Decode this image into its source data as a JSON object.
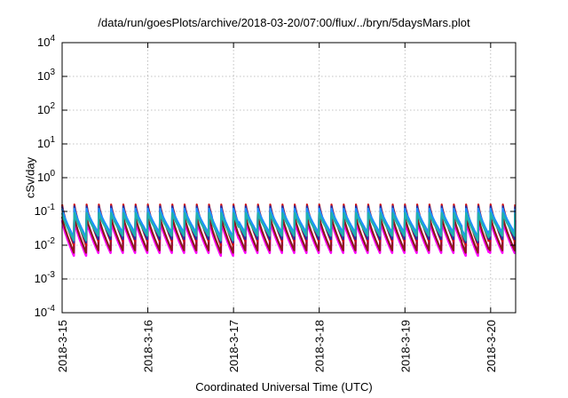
{
  "chart_data": {
    "type": "line",
    "title": "/data/run/goesPlots/archive/2018-03-20/07:00/flux/../bryn/5daysMars.plot",
    "xlabel": "Coordinated Universal Time (UTC)",
    "ylabel": "cSv/day",
    "yscale": "log",
    "ylim": [
      0.0001,
      10000
    ],
    "y_ticks": [
      {
        "value": 0.0001,
        "base": "10",
        "exp": "-4"
      },
      {
        "value": 0.001,
        "base": "10",
        "exp": "-3"
      },
      {
        "value": 0.01,
        "base": "10",
        "exp": "-2"
      },
      {
        "value": 0.1,
        "base": "10",
        "exp": "-1"
      },
      {
        "value": 1,
        "base": "10",
        "exp": "0"
      },
      {
        "value": 10,
        "base": "10",
        "exp": "1"
      },
      {
        "value": 100,
        "base": "10",
        "exp": "2"
      },
      {
        "value": 1000,
        "base": "10",
        "exp": "3"
      },
      {
        "value": 10000,
        "base": "10",
        "exp": "4"
      }
    ],
    "xlim": [
      "2018-03-15T00:00",
      "2018-03-20T07:00"
    ],
    "x_ticks": [
      "2018-3-15",
      "2018-3-16",
      "2018-3-17",
      "2018-3-18",
      "2018-3-19",
      "2018-3-20"
    ],
    "grid": true,
    "pattern": {
      "cycles_per_day": 7,
      "low_dips_start": [
        "2018-03-15T00:00",
        "2018-03-16T18:00",
        "2018-03-19T16:00"
      ]
    },
    "series": [
      {
        "color": "#ff00ff",
        "peak": 0.055,
        "trough": 0.0055,
        "dip": 0.0045
      },
      {
        "color": "#8b1a1a",
        "peak": 0.07,
        "trough": 0.0065,
        "dip": 0.0055
      },
      {
        "color": "#d01010",
        "peak": 0.16,
        "trough": 0.012,
        "dip": 0.009
      },
      {
        "color": "#2b2b9e",
        "peak": 0.14,
        "trough": 0.014,
        "dip": 0.011
      },
      {
        "color": "#1e90ff",
        "peak": 0.12,
        "trough": 0.022,
        "dip": 0.016
      },
      {
        "color": "#20b2aa",
        "peak": 0.09,
        "trough": 0.018,
        "dip": 0.013
      }
    ]
  }
}
